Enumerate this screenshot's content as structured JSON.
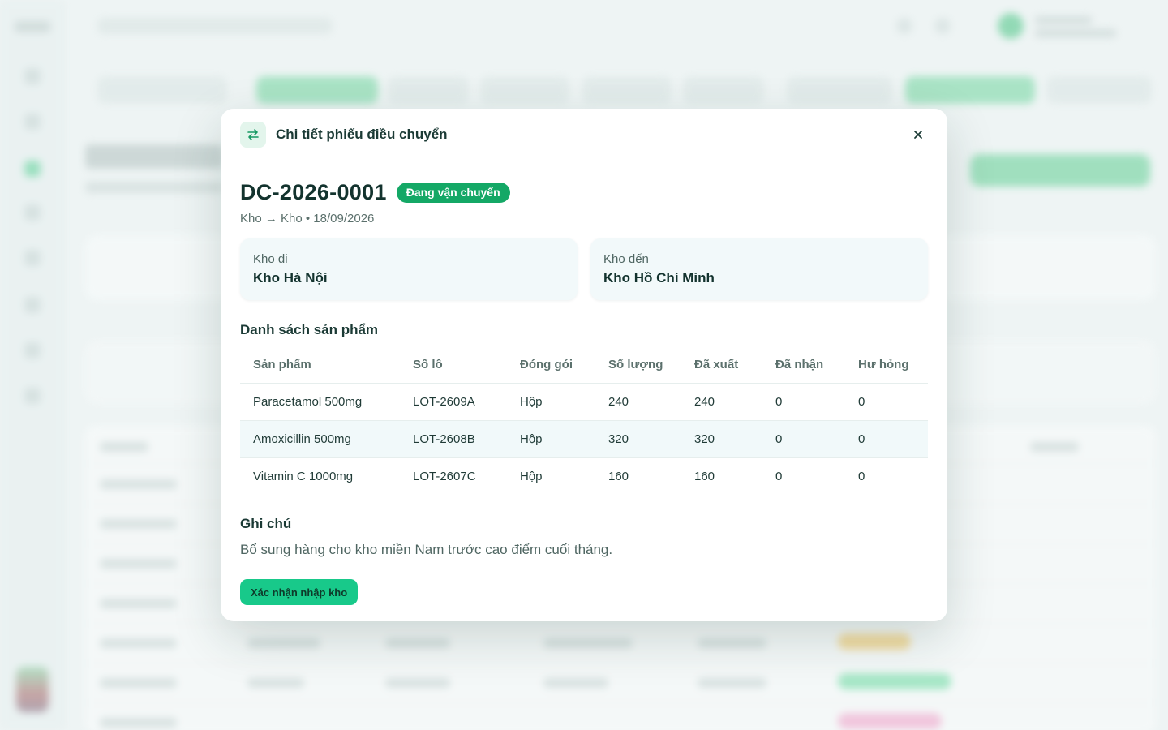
{
  "modal": {
    "title": "Chi tiết phiếu điều chuyển",
    "doc_code": "DC-2026-0001",
    "status": "Đang vận chuyển",
    "meta": "Kho → Kho • 18/09/2026",
    "from_label": "Kho đi",
    "from_value": "Kho Hà Nội",
    "to_label": "Kho đến",
    "to_value": "Kho Hồ Chí Minh",
    "products_title": "Danh sách sản phẩm",
    "columns": [
      "Sản phẩm",
      "Số lô",
      "Đóng gói",
      "Số lượng",
      "Đã xuất",
      "Đã nhận",
      "Hư hỏng"
    ],
    "rows": [
      [
        "Paracetamol 500mg",
        "LOT-2609A",
        "Hộp",
        "240",
        "240",
        "0",
        "0"
      ],
      [
        "Amoxicillin 500mg",
        "LOT-2608B",
        "Hộp",
        "320",
        "320",
        "0",
        "0"
      ],
      [
        "Vitamin C 1000mg",
        "LOT-2607C",
        "Hộp",
        "160",
        "160",
        "0",
        "0"
      ]
    ],
    "note_title": "Ghi chú",
    "note_text": "Bổ sung hàng cho kho miền Nam trước cao điểm cuối tháng.",
    "confirm_label": "Xác nhận nhập kho"
  },
  "icons": {
    "header": "swap-arrows-icon",
    "close": "close-icon"
  },
  "colors": {
    "status_badge": "#14a866",
    "confirm_button": "#18c98a",
    "header_icon_bg": "#e3f5ec"
  }
}
